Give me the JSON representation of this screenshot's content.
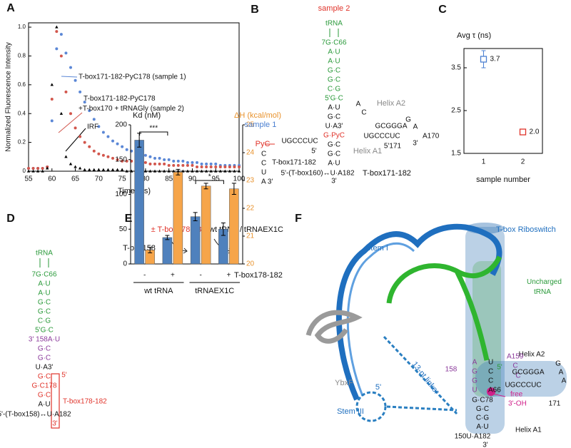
{
  "chart_data": [
    {
      "panel": "A",
      "type": "scatter",
      "ylabel": "Normalized Fluorescence Intensity",
      "xlabel": "Time (ns)",
      "x": [
        55,
        56,
        57,
        58,
        59,
        60,
        61,
        62,
        63,
        64,
        65,
        66,
        67,
        68,
        69,
        70,
        71,
        72,
        73,
        74,
        75,
        76,
        77,
        78,
        79,
        80,
        81,
        82,
        83,
        84,
        85,
        86,
        87,
        88,
        89,
        90,
        91,
        92,
        93,
        94,
        95,
        96,
        97,
        98,
        99,
        100
      ],
      "xlim": [
        55,
        100
      ],
      "xticks": [
        55,
        60,
        65,
        70,
        75,
        80,
        85,
        90,
        95,
        100
      ],
      "ylim": [
        0,
        1.03
      ],
      "yticks": [
        0,
        0.2,
        0.4,
        0.6,
        0.8,
        {
          "value": 1,
          "label": "1.0"
        }
      ],
      "series": [
        {
          "name": "T-box171-182-PyC178 (sample 1)",
          "color": "#5b87d6",
          "marker": "circle",
          "values": [
            0.02,
            0.02,
            0.02,
            0.02,
            0.03,
            0.35,
            0.85,
            0.95,
            0.82,
            0.72,
            0.63,
            0.55,
            0.48,
            0.42,
            0.36,
            0.31,
            0.27,
            0.24,
            0.21,
            0.19,
            0.17,
            0.15,
            0.14,
            0.13,
            0.12,
            0.11,
            0.1,
            0.09,
            0.09,
            0.08,
            0.08,
            0.07,
            0.07,
            0.07,
            0.06,
            0.06,
            0.06,
            0.05,
            0.05,
            0.05,
            0.05,
            0.04,
            0.04,
            0.04,
            0.04,
            0.04
          ]
        },
        {
          "name": "T-box171-182-PyC178 +T-box170 + tRNAGly (sample 2)",
          "color": "#d2564c",
          "marker": "circle",
          "values": [
            0.02,
            0.02,
            0.02,
            0.02,
            0.03,
            0.5,
            0.97,
            0.8,
            0.55,
            0.4,
            0.3,
            0.24,
            0.2,
            0.17,
            0.14,
            0.12,
            0.11,
            0.1,
            0.09,
            0.08,
            0.07,
            0.07,
            0.07,
            0.06,
            0.06,
            0.06,
            0.05,
            0.05,
            0.05,
            0.05,
            0.04,
            0.04,
            0.04,
            0.04,
            0.04,
            0.04,
            0.03,
            0.03,
            0.03,
            0.03,
            0.03,
            0.03,
            0.03,
            0.03,
            0.03,
            0.03
          ]
        },
        {
          "name": "IRF",
          "color": "#000000",
          "marker": "triangle",
          "values": [
            0,
            0,
            0,
            0,
            0.02,
            0.6,
            1,
            0.4,
            0.1,
            0.05,
            0.03,
            0.02,
            0.01,
            0.01,
            0.01,
            0.01,
            0.01,
            0.01,
            0.01,
            0.01,
            0.01,
            0,
            0,
            0,
            0,
            0,
            0,
            0,
            0,
            0,
            0,
            0,
            0,
            0,
            0,
            0,
            0,
            0,
            0,
            0,
            0,
            0,
            0,
            0,
            0,
            0
          ]
        }
      ]
    },
    {
      "panel": "C",
      "type": "errorbar",
      "ylabel": "Avg τ (ns)",
      "xlabel": "sample number",
      "categories": [
        "1",
        "2"
      ],
      "values": [
        3.7,
        2.0
      ],
      "errors": [
        0.2,
        0.06
      ],
      "value_labels": [
        "3.7",
        "2.0"
      ],
      "colors": [
        "#4a7fd1",
        "#e0332a"
      ],
      "ylim": [
        1.5,
        3.95
      ],
      "yticks": [
        1.5,
        2.5,
        3.5
      ]
    },
    {
      "panel": "E",
      "type": "grouped-bar",
      "ylabel": "Kd (nM)",
      "y2label": "ΔH (kcal/mol)",
      "categories": [
        "-",
        "+",
        "-",
        "+"
      ],
      "groups": [
        "wt tRNA",
        "tRNAEX1C"
      ],
      "x_legend": "T-box178-182",
      "series": [
        {
          "color": "#4f81bd",
          "values": [
            178,
            38,
            68,
            50
          ],
          "errors": [
            10,
            3,
            6,
            9
          ]
        },
        {
          "color": "#f6a54a",
          "axis": "y2",
          "values": [
            20.5,
            23.3,
            22.8,
            22.7
          ],
          "errors": [
            0.1,
            0.1,
            0.1,
            0.2
          ]
        }
      ],
      "ylim": [
        0,
        200
      ],
      "yticks": [
        0,
        50,
        100,
        150,
        200
      ],
      "y2lim": [
        20,
        25
      ],
      "y2ticks": [
        20,
        21,
        22,
        23,
        24,
        25
      ],
      "significance": [
        "***",
        "*"
      ],
      "schematic": {
        "top": "± T-box178-182",
        "right": "wt tRNA / tRNAEX1C",
        "left": "T-box158"
      }
    }
  ],
  "diagrams": {
    "B": {
      "label": "B",
      "title": "sample 2",
      "trna": "tRNA",
      "stem": [
        "7G·C66",
        "A·U",
        "A·U",
        "G·C",
        "G·C",
        "C·G",
        "5'G·C",
        "A·U",
        "G·C",
        "U·A3'",
        "G·PyC",
        "G·C",
        "G·C",
        "A·U"
      ],
      "end_row": "5'-(T-box160)↔U·A182",
      "three_prime": "3'",
      "helix_a2": "Helix A2",
      "helix_a1": "Helix A1",
      "a2_top": "GCGGGA",
      "a2_bottom": "UGCCCUC",
      "bulge": [
        "A",
        "C"
      ],
      "loop": [
        "G",
        "A"
      ],
      "a170": "A170",
      "ends": [
        "5'171",
        "3'"
      ],
      "tbox_label": "T-box171-182",
      "sample1": {
        "title": "sample 1",
        "pyc": "PyC",
        "seq": "UGCCCUC",
        "five": "5'",
        "tail": [
          "C",
          "C",
          "U",
          "A 3'"
        ],
        "label": "T-box171-182"
      }
    },
    "D": {
      "label": "D",
      "trna": "tRNA",
      "stem": [
        "7G·C66",
        "A·U",
        "A·U",
        "G·C",
        "G·C",
        "C·G",
        "5'G·C",
        "3' 158A·U",
        "G·C",
        "G·C",
        "U·A3'",
        "G·C",
        "G·C178",
        "G·C",
        "A·U"
      ],
      "end_row": "5'-(T-box158)↔U·A182",
      "three_prime": "3'",
      "five": "5'",
      "tbox_label": "T-box178-182"
    },
    "F": {
      "label": "F",
      "riboswitch": "T-box Riboswitch",
      "stem1": "Stem I",
      "trna": "Uncharged tRNA",
      "five_green": "5'",
      "ybxf": "YbxF",
      "five_blue": "5'",
      "linker": "13-nt linker",
      "stem3": "Stem III",
      "helix_a2": "Helix A2",
      "helix_a1": "Helix A1",
      "free": "free",
      "oh": "3'-OH",
      "n158": "158",
      "a159": "A159",
      "c_pair": [
        "C",
        "C"
      ],
      "purple_col": [
        "A",
        "G",
        "G",
        "U"
      ],
      "white_col": [
        "U",
        "C",
        "C",
        "A66"
      ],
      "a2_top": "GCGGGA",
      "a2_bottom": "UGCCCUC",
      "loop": [
        "G",
        "A",
        "A"
      ],
      "n171": "171",
      "a1_rows": [
        "G·C78",
        "G·C",
        "C·G",
        "A·U"
      ],
      "end_row": "150U·A182",
      "three_prime": "3'"
    }
  }
}
